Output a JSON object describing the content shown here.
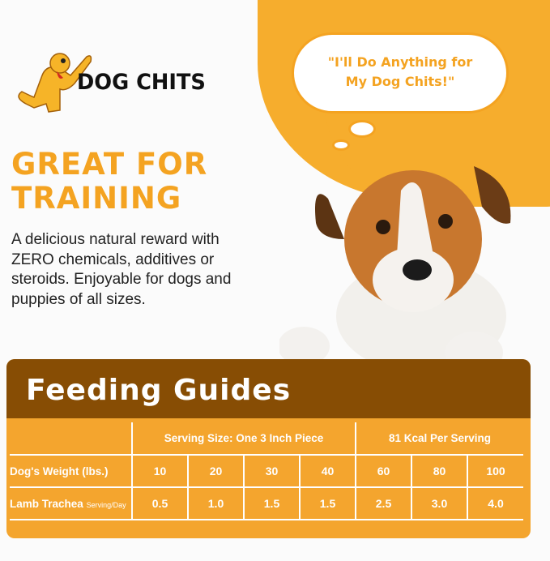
{
  "brand": {
    "name": "DOG CHITS"
  },
  "bubble": {
    "quote": "\"I'll Do Anything for My Dog Chits!\""
  },
  "headline": {
    "line1": "GREAT FOR",
    "line2": "TRAINING"
  },
  "description": "A delicious natural reward with ZERO chemicals, additives or steroids. Enjoyable for dogs and puppies of all sizes.",
  "feeding": {
    "title": "Feeding Guides",
    "group1": "Serving Size: One 3 Inch Piece",
    "group2": "81 Kcal Per Serving",
    "weight_label": "Dog's Weight (lbs.)",
    "serving_label": "Lamb Trachea",
    "serving_unit": "Serving/Day",
    "weights": [
      "10",
      "20",
      "30",
      "40",
      "60",
      "80",
      "100"
    ],
    "servings": [
      "0.5",
      "1.0",
      "1.5",
      "1.5",
      "2.5",
      "3.0",
      "4.0"
    ]
  },
  "colors": {
    "accent": "#f4a52e",
    "brown": "#874d04"
  }
}
